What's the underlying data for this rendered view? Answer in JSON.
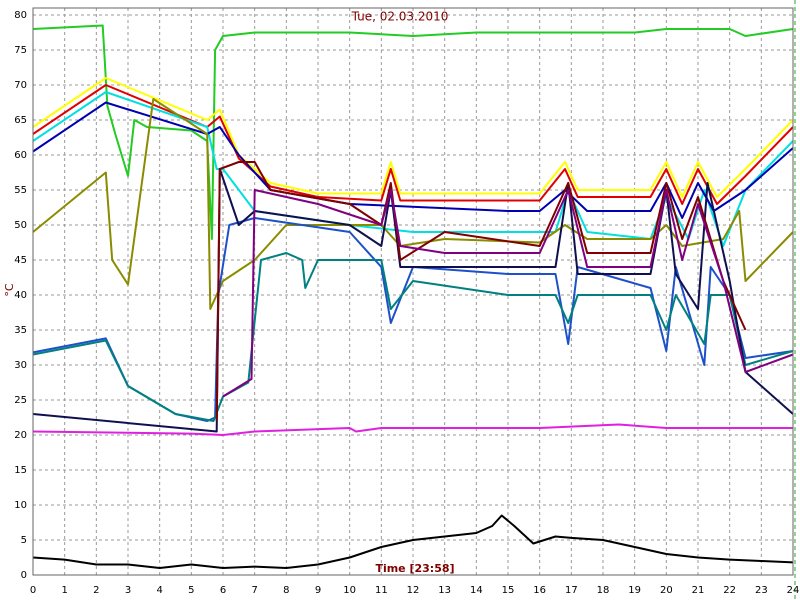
{
  "chart_data": {
    "type": "line",
    "title": "Tue, 02.03.2010",
    "x_label": "Time [23:58]",
    "y_label": "°C",
    "xlim": [
      0,
      24
    ],
    "ylim": [
      0,
      81
    ],
    "xticks": [
      0,
      1,
      2,
      3,
      4,
      5,
      6,
      7,
      8,
      9,
      10,
      11,
      12,
      13,
      14,
      15,
      16,
      17,
      18,
      19,
      20,
      21,
      22,
      23,
      24
    ],
    "yticks": [
      0,
      5,
      10,
      15,
      20,
      25,
      30,
      35,
      40,
      45,
      50,
      55,
      60,
      65,
      70,
      75,
      80
    ],
    "grid": true,
    "series": [
      {
        "color": "#22cc22",
        "x": [
          0,
          2.2,
          2.35,
          2.6,
          3.0,
          3.2,
          3.6,
          5.0,
          5.5,
          5.65,
          5.75,
          6.0,
          7,
          10,
          12,
          14,
          17,
          19,
          20,
          21,
          22,
          22.5,
          24
        ],
        "values": [
          78,
          78.5,
          67,
          63,
          57,
          65,
          64,
          63.5,
          62,
          48,
          75,
          77,
          77.5,
          77.5,
          77,
          77.5,
          77.5,
          77.5,
          78,
          78,
          78,
          77,
          78
        ]
      },
      {
        "color": "#ffff00",
        "x": [
          0,
          2.3,
          5.5,
          5.9,
          6.5,
          7.5,
          9,
          11,
          11.3,
          11.6,
          16,
          16.8,
          17.2,
          19.5,
          20,
          20.5,
          21,
          21.6,
          22.5,
          24
        ],
        "values": [
          64,
          71,
          65,
          66.5,
          60,
          56,
          54.5,
          54.5,
          59,
          54.5,
          54.5,
          59,
          55,
          55,
          59,
          54,
          59,
          54,
          58,
          65
        ]
      },
      {
        "color": "#e00000",
        "x": [
          0,
          2.3,
          5.5,
          5.9,
          6.5,
          7.5,
          9,
          11,
          11.3,
          11.6,
          16,
          16.8,
          17.2,
          19.5,
          20,
          20.5,
          21,
          21.6,
          22.5,
          24
        ],
        "values": [
          63,
          70,
          64,
          65.5,
          59.5,
          55.5,
          54,
          53.5,
          58,
          53.5,
          53.5,
          58,
          54,
          54,
          58,
          53,
          58,
          53,
          57,
          64
        ]
      },
      {
        "color": "#00e0e0",
        "x": [
          0,
          2.3,
          5.5,
          5.8,
          6.0,
          7,
          10,
          12,
          16.5,
          16.9,
          17.5,
          19.5,
          20,
          20.7,
          21.2,
          21.8,
          22.5,
          24
        ],
        "values": [
          62,
          69,
          64,
          58,
          58,
          52,
          50,
          49,
          49,
          55,
          49,
          48,
          54,
          48,
          55,
          47,
          55,
          62
        ]
      },
      {
        "color": "#0000b0",
        "x": [
          0,
          2.3,
          5.5,
          5.9,
          6.5,
          7.5,
          10,
          15,
          16,
          16.8,
          17.5,
          19.5,
          20,
          20.5,
          21,
          21.5,
          22.5,
          24
        ],
        "values": [
          60.5,
          67.5,
          63,
          64,
          60,
          55,
          53,
          52,
          52,
          55,
          52,
          52,
          56,
          51,
          56,
          52,
          55,
          61
        ]
      },
      {
        "color": "#8b8b00",
        "x": [
          0,
          2.3,
          2.5,
          3.0,
          3.8,
          5.5,
          5.6,
          6.0,
          7,
          8,
          11,
          11.6,
          13,
          16,
          16.8,
          17.5,
          19.5,
          20,
          20.5,
          21.8,
          22.3,
          22.5,
          24
        ],
        "values": [
          49,
          57.5,
          45,
          41.5,
          68,
          63,
          38,
          42,
          45,
          50,
          50,
          47,
          48,
          47.5,
          50,
          48,
          48,
          50,
          47,
          48,
          52,
          42,
          49
        ]
      },
      {
        "color": "#1e50c8",
        "x": [
          0,
          2.3,
          3,
          4.5,
          5.5,
          5.75,
          5.85,
          6.2,
          7,
          10,
          11,
          11.3,
          12,
          15,
          16.5,
          16.9,
          17.2,
          19.5,
          20,
          20.3,
          21.2,
          21.4,
          22,
          22.5,
          24
        ],
        "values": [
          31.8,
          33.8,
          27,
          23,
          22,
          22.5,
          40,
          50,
          51,
          49,
          44,
          36,
          44,
          43,
          43,
          33,
          44,
          41,
          32,
          44,
          30,
          44,
          40,
          31,
          32
        ]
      },
      {
        "color": "#008080",
        "x": [
          0,
          2.3,
          3,
          4.5,
          5.7,
          6,
          6.8,
          7.2,
          8,
          8.5,
          8.6,
          9,
          11,
          11.3,
          12,
          15,
          16.5,
          16.9,
          17.2,
          19.5,
          20,
          20.3,
          21.2,
          21.4,
          22,
          22.5,
          24
        ],
        "values": [
          31.5,
          33.5,
          27,
          23,
          22,
          25.5,
          27.5,
          45,
          46,
          45,
          41,
          45,
          45,
          38,
          42,
          40,
          40,
          36,
          40,
          40,
          35,
          40,
          33,
          40,
          40,
          30,
          32
        ]
      },
      {
        "color": "#101050",
        "x": [
          0,
          5.8,
          5.9,
          6.5,
          7,
          10,
          11,
          11.3,
          11.6,
          15,
          16.5,
          16.9,
          17.2,
          19.5,
          20,
          20.3,
          21,
          21.3,
          22,
          22.5,
          24
        ],
        "values": [
          23,
          20.5,
          58,
          50,
          52,
          50,
          47,
          55,
          44,
          44,
          44,
          56,
          43,
          43,
          55,
          43,
          38,
          56,
          42,
          29,
          23
        ]
      },
      {
        "color": "#800000",
        "x": [
          5.8,
          5.9,
          6.5,
          7,
          7.5,
          10,
          11,
          11.3,
          11.6,
          13,
          16,
          16.9,
          17.5,
          19.5,
          20,
          20.5,
          21,
          21.8,
          22.5
        ],
        "values": [
          22,
          58,
          59,
          59,
          55,
          53,
          50,
          56,
          45,
          49,
          47,
          56,
          46,
          46,
          56,
          48,
          54,
          42,
          35
        ]
      },
      {
        "color": "#800080",
        "x": [
          6,
          6.9,
          7,
          9,
          11,
          11.3,
          11.6,
          13,
          16,
          16.9,
          17.5,
          19.5,
          20,
          20.5,
          21,
          21.8,
          22.5,
          24
        ],
        "values": [
          25.5,
          28,
          55,
          53,
          50,
          55,
          47,
          46,
          46,
          55,
          44,
          44,
          55,
          45,
          53,
          42,
          29,
          31.5
        ]
      },
      {
        "color": "#e020e0",
        "x": [
          0,
          5,
          6,
          7,
          10,
          10.2,
          11,
          16,
          18.5,
          20,
          24
        ],
        "values": [
          20.5,
          20.2,
          20,
          20.5,
          21,
          20.5,
          21,
          21,
          21.5,
          21,
          21
        ]
      },
      {
        "color": "#000000",
        "x": [
          0,
          1,
          2,
          3,
          4,
          5,
          6,
          7,
          8,
          9,
          10,
          11,
          12,
          13,
          14,
          14.5,
          14.8,
          15.2,
          15.8,
          16.5,
          17,
          18,
          19,
          20,
          21,
          22,
          23,
          24
        ],
        "values": [
          2.5,
          2.2,
          1.5,
          1.5,
          1,
          1.5,
          1,
          1.2,
          1,
          1.5,
          2.5,
          4,
          5,
          5.5,
          6,
          7,
          8.5,
          7,
          4.5,
          5.5,
          5.3,
          5,
          4,
          3,
          2.5,
          2.2,
          2,
          1.8
        ]
      }
    ]
  }
}
